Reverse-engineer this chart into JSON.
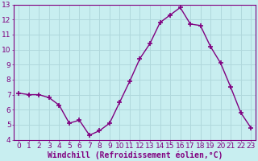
{
  "x": [
    0,
    1,
    2,
    3,
    4,
    5,
    6,
    7,
    8,
    9,
    10,
    11,
    12,
    13,
    14,
    15,
    16,
    17,
    18,
    19,
    20,
    21,
    22,
    23
  ],
  "y": [
    7.1,
    7.0,
    7.0,
    6.8,
    6.3,
    5.1,
    5.3,
    4.3,
    4.6,
    5.1,
    6.5,
    7.9,
    9.4,
    10.4,
    11.8,
    12.3,
    12.8,
    11.7,
    11.6,
    10.2,
    9.1,
    7.5,
    5.8,
    4.8
  ],
  "line_color": "#800080",
  "marker": "+",
  "marker_size": 4,
  "bg_color": "#c8eef0",
  "grid_color": "#b0d8dc",
  "xlabel": "Windchill (Refroidissement éolien,°C)",
  "ylabel": "",
  "ylim": [
    4,
    13
  ],
  "xlim": [
    -0.5,
    23.5
  ],
  "yticks": [
    4,
    5,
    6,
    7,
    8,
    9,
    10,
    11,
    12,
    13
  ],
  "xticks": [
    0,
    1,
    2,
    3,
    4,
    5,
    6,
    7,
    8,
    9,
    10,
    11,
    12,
    13,
    14,
    15,
    16,
    17,
    18,
    19,
    20,
    21,
    22,
    23
  ],
  "tick_label_fontsize": 6.5,
  "xlabel_fontsize": 7,
  "line_width": 1.0,
  "marker_linewidth": 1.2
}
